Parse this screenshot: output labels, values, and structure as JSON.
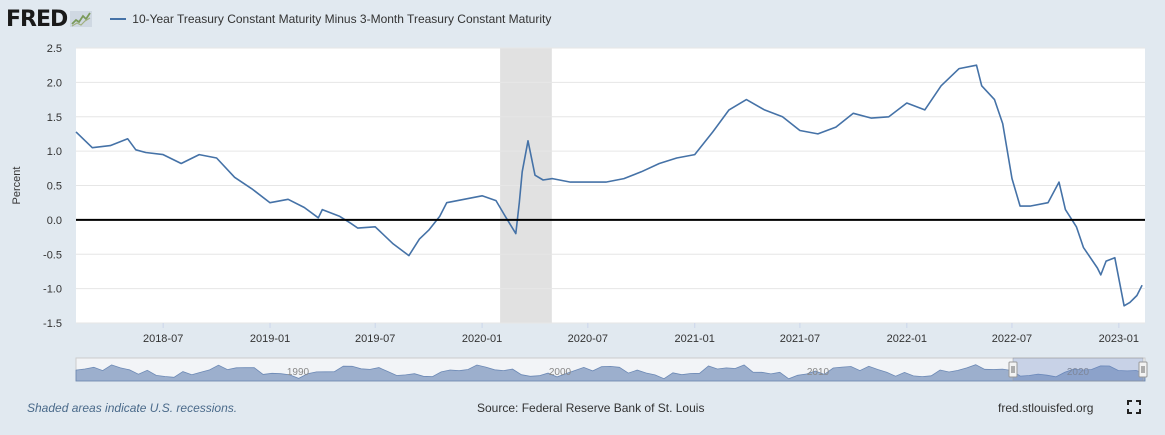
{
  "header": {
    "logo_text": "FRED",
    "series_title": "10-Year Treasury Constant Maturity Minus 3-Month Treasury Constant Maturity"
  },
  "footer": {
    "recession_note": "Shaded areas indicate U.S. recessions.",
    "source": "Source: Federal Reserve Bank of St. Louis",
    "site": "fred.stlouisfed.org"
  },
  "colors": {
    "series": "#4572a7",
    "recession": "#e1e1e1",
    "navigator_fill": "#8ea3c6"
  },
  "chart_data": {
    "type": "line",
    "ylabel": "Percent",
    "ylim": [
      -1.5,
      2.5
    ],
    "y_ticks": [
      "2.5",
      "2.0",
      "1.5",
      "1.0",
      "0.5",
      "0.0",
      "-0.5",
      "-1.0",
      "-1.5"
    ],
    "x_range": [
      "2018-02-01",
      "2023-02-15"
    ],
    "x_ticks": [
      "2018-07",
      "2019-01",
      "2019-07",
      "2020-01",
      "2020-07",
      "2021-01",
      "2021-07",
      "2022-01",
      "2022-07",
      "2023-01"
    ],
    "recessions": [
      [
        "2020-02-01",
        "2020-04-30"
      ]
    ],
    "zero_line": true,
    "series": [
      {
        "x": [
          "2018-02-01",
          "2018-03-01",
          "2018-04-01",
          "2018-05-01",
          "2018-05-15",
          "2018-06-01",
          "2018-07-01",
          "2018-08-01",
          "2018-09-01",
          "2018-10-01",
          "2018-11-01",
          "2018-12-01",
          "2019-01-01",
          "2019-02-01",
          "2019-03-01",
          "2019-03-25",
          "2019-04-01",
          "2019-05-01",
          "2019-05-20",
          "2019-06-01",
          "2019-07-01",
          "2019-08-01",
          "2019-08-28",
          "2019-09-15",
          "2019-10-01",
          "2019-10-20",
          "2019-11-01",
          "2019-12-01",
          "2020-01-01",
          "2020-01-25",
          "2020-02-10",
          "2020-02-28",
          "2020-03-05",
          "2020-03-10",
          "2020-03-20",
          "2020-04-01",
          "2020-04-15",
          "2020-05-01",
          "2020-06-01",
          "2020-07-01",
          "2020-08-01",
          "2020-09-01",
          "2020-10-01",
          "2020-11-01",
          "2020-12-01",
          "2021-01-01",
          "2021-02-01",
          "2021-03-01",
          "2021-03-31",
          "2021-05-01",
          "2021-06-01",
          "2021-07-01",
          "2021-08-01",
          "2021-09-01",
          "2021-10-01",
          "2021-11-01",
          "2021-12-01",
          "2022-01-01",
          "2022-02-01",
          "2022-03-01",
          "2022-04-01",
          "2022-05-01",
          "2022-05-10",
          "2022-06-01",
          "2022-06-15",
          "2022-07-01",
          "2022-07-15",
          "2022-08-01",
          "2022-09-01",
          "2022-09-20",
          "2022-10-01",
          "2022-10-20",
          "2022-11-01",
          "2022-11-25",
          "2022-12-01",
          "2022-12-10",
          "2022-12-25",
          "2023-01-10",
          "2023-01-20",
          "2023-02-01",
          "2023-02-10"
        ],
        "y": [
          1.28,
          1.05,
          1.08,
          1.18,
          1.02,
          0.98,
          0.95,
          0.82,
          0.95,
          0.9,
          0.62,
          0.45,
          0.25,
          0.3,
          0.18,
          0.03,
          0.15,
          0.05,
          -0.05,
          -0.12,
          -0.1,
          -0.35,
          -0.52,
          -0.28,
          -0.15,
          0.05,
          0.25,
          0.3,
          0.35,
          0.28,
          0.05,
          -0.2,
          0.25,
          0.7,
          1.15,
          0.65,
          0.58,
          0.6,
          0.55,
          0.55,
          0.55,
          0.6,
          0.7,
          0.82,
          0.9,
          0.95,
          1.28,
          1.6,
          1.75,
          1.6,
          1.5,
          1.3,
          1.25,
          1.35,
          1.55,
          1.48,
          1.5,
          1.7,
          1.6,
          1.95,
          2.2,
          2.25,
          1.95,
          1.75,
          1.4,
          0.6,
          0.2,
          0.2,
          0.25,
          0.55,
          0.15,
          -0.1,
          -0.4,
          -0.7,
          -0.8,
          -0.6,
          -0.55,
          -1.25,
          -1.2,
          -1.1,
          -0.95
        ]
      }
    ]
  },
  "navigator": {
    "labels": [
      "1990",
      "2000",
      "2010",
      "2020"
    ]
  }
}
